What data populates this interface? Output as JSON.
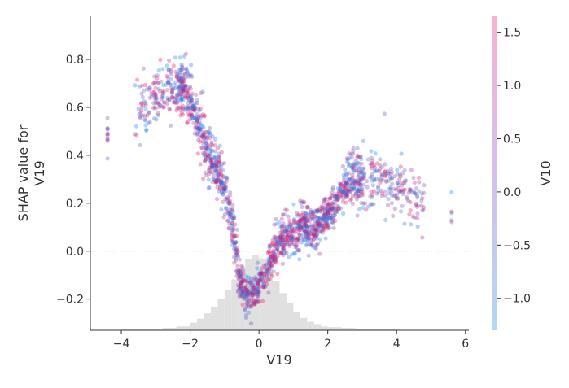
{
  "chart_data": {
    "type": "scatter",
    "kind": "shap-dependence",
    "xlabel": "V19",
    "ylabel_lines": [
      "SHAP value for",
      "V19"
    ],
    "colorbar_label": "V10",
    "xlim": [
      -4.9,
      6.1
    ],
    "ylim": [
      -0.33,
      0.98
    ],
    "x_ticks": [
      -4,
      -2,
      0,
      2,
      4,
      6
    ],
    "x_tick_labels": [
      "−4",
      "−2",
      "0",
      "2",
      "4",
      "6"
    ],
    "y_ticks": [
      -0.2,
      0.0,
      0.2,
      0.4,
      0.6,
      0.8
    ],
    "y_tick_labels": [
      "−0.2",
      "0.0",
      "0.2",
      "0.4",
      "0.6",
      "0.8"
    ],
    "colorbar_range": [
      -1.3,
      1.65
    ],
    "colorbar_ticks": [
      -1.0,
      -0.5,
      0.0,
      0.5,
      1.0,
      1.5
    ],
    "colorbar_tick_labels": [
      "−1.0",
      "−0.5",
      "0.0",
      "0.5",
      "1.0",
      "1.5"
    ],
    "color_low": "#008afb",
    "color_high": "#ff0052",
    "histogram_color": "#e0e0e0",
    "zero_line": "dotted",
    "grid": false,
    "trend_x": [
      -4.4,
      -3.5,
      -2.6,
      -2.2,
      -1.9,
      -1.6,
      -1.3,
      -1.0,
      -0.8,
      -0.6,
      -0.4,
      -0.2,
      0.0,
      0.3,
      0.6,
      0.9,
      1.15,
      1.2,
      1.6,
      2.0,
      2.3,
      2.6,
      3.0,
      3.4,
      3.8,
      4.2,
      4.7,
      5.6
    ],
    "trend_y": [
      0.52,
      0.6,
      0.68,
      0.69,
      0.6,
      0.45,
      0.36,
      0.26,
      0.15,
      -0.1,
      -0.17,
      -0.18,
      -0.15,
      -0.05,
      0.05,
      0.07,
      0.08,
      0.12,
      0.09,
      0.15,
      0.22,
      0.3,
      0.3,
      0.3,
      0.28,
      0.24,
      0.2,
      0.15
    ],
    "histogram_bins": [
      -4,
      -3.6,
      -3.2,
      -2.8,
      -2.4,
      -2.0,
      -1.8,
      -1.6,
      -1.4,
      -1.2,
      -1.0,
      -0.8,
      -0.6,
      -0.4,
      -0.2,
      0.0,
      0.2,
      0.4,
      0.6,
      0.8,
      1.0,
      1.2,
      1.4,
      1.6,
      1.8,
      2.0,
      2.4,
      2.8,
      3.2,
      3.6,
      4.0
    ],
    "histogram_heights": [
      0.001,
      0.001,
      0.002,
      0.003,
      0.005,
      0.01,
      0.015,
      0.022,
      0.03,
      0.04,
      0.052,
      0.066,
      0.08,
      0.092,
      0.097,
      0.093,
      0.08,
      0.064,
      0.048,
      0.035,
      0.024,
      0.016,
      0.011,
      0.008,
      0.005,
      0.004,
      0.003,
      0.002,
      0.001,
      0.001
    ]
  }
}
